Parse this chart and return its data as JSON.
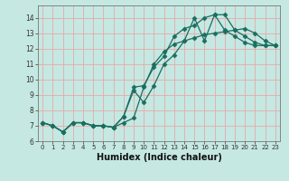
{
  "xlabel": "Humidex (Indice chaleur)",
  "bg_color": "#c5e8e2",
  "grid_color": "#e8a8a8",
  "line_color": "#1a6e60",
  "xlim": [
    -0.5,
    23.5
  ],
  "ylim": [
    6.0,
    14.8
  ],
  "yticks": [
    6,
    7,
    8,
    9,
    10,
    11,
    12,
    13,
    14
  ],
  "xticks": [
    0,
    1,
    2,
    3,
    4,
    5,
    6,
    7,
    8,
    9,
    10,
    11,
    12,
    13,
    14,
    15,
    16,
    17,
    18,
    19,
    20,
    21,
    22,
    23
  ],
  "line1_x": [
    0,
    1,
    2,
    3,
    4,
    5,
    6,
    7,
    8,
    9,
    10,
    11,
    12,
    13,
    14,
    15,
    16,
    17,
    18,
    19,
    20,
    21,
    22,
    23
  ],
  "line1_y": [
    7.2,
    7.0,
    6.6,
    7.2,
    7.2,
    7.0,
    7.0,
    6.9,
    7.6,
    9.3,
    8.5,
    9.6,
    11.0,
    11.6,
    12.5,
    14.0,
    12.5,
    14.2,
    14.2,
    13.2,
    12.8,
    12.4,
    12.2,
    12.2
  ],
  "line2_x": [
    0,
    1,
    2,
    3,
    4,
    5,
    6,
    7,
    8,
    9,
    10,
    11,
    12,
    13,
    14,
    15,
    16,
    17,
    18,
    19,
    20,
    21,
    22,
    23
  ],
  "line2_y": [
    7.2,
    7.0,
    6.6,
    7.2,
    7.2,
    7.0,
    7.0,
    6.9,
    7.6,
    9.5,
    9.6,
    10.8,
    11.5,
    12.8,
    13.3,
    13.5,
    14.0,
    14.2,
    13.2,
    12.8,
    12.4,
    12.2,
    12.2,
    12.2
  ],
  "line3_x": [
    0,
    1,
    2,
    3,
    4,
    5,
    6,
    7,
    8,
    9,
    10,
    11,
    12,
    13,
    14,
    15,
    16,
    17,
    18,
    19,
    20,
    21,
    22,
    23
  ],
  "line3_y": [
    7.2,
    7.0,
    6.6,
    7.2,
    7.2,
    7.0,
    7.0,
    6.9,
    7.2,
    7.5,
    9.5,
    11.0,
    11.8,
    12.3,
    12.5,
    12.7,
    12.9,
    13.0,
    13.1,
    13.2,
    13.3,
    13.0,
    12.5,
    12.2
  ]
}
